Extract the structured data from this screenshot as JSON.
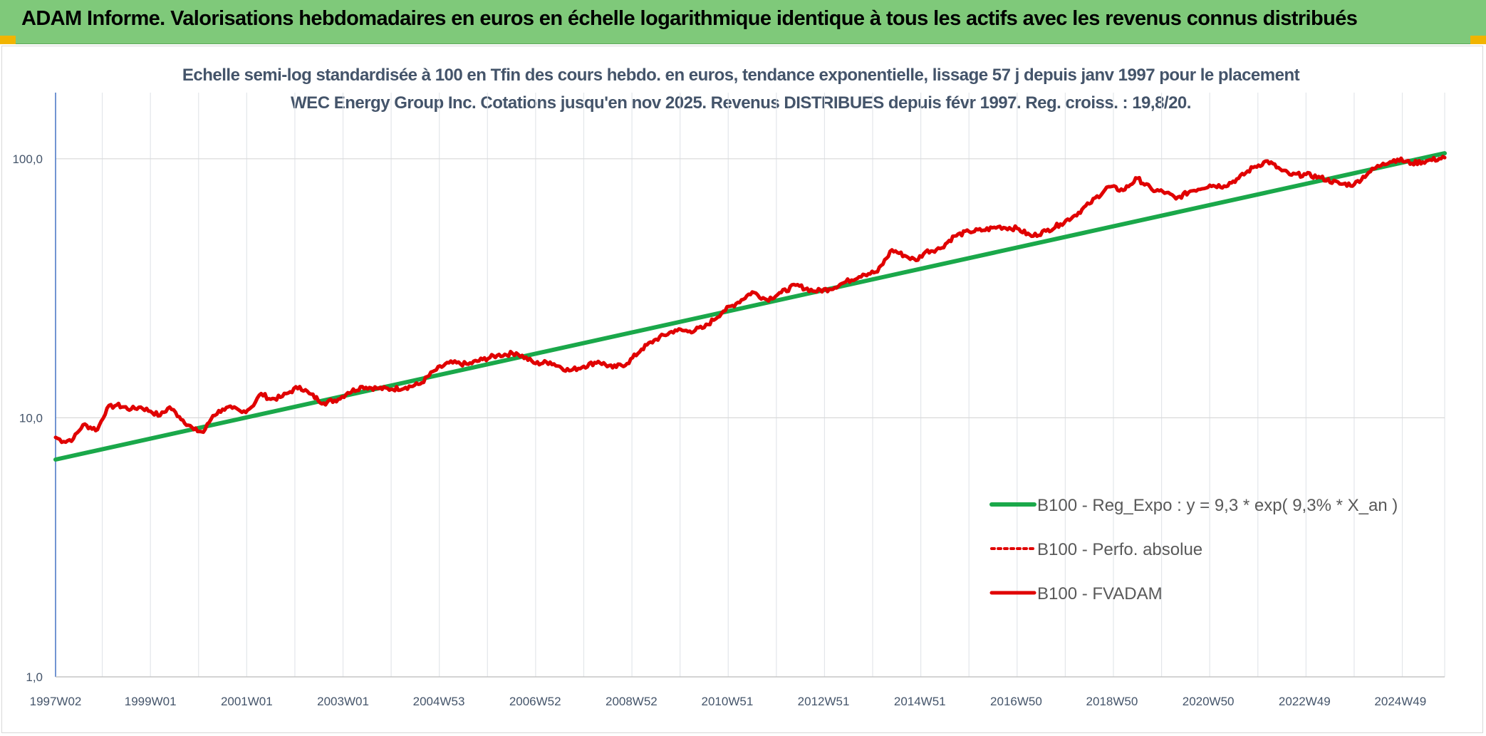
{
  "banner": {
    "title": "ADAM Informe. Valorisations hebdomadaires en euros en échelle logarithmique identique à tous les actifs avec les revenus connus distribués"
  },
  "colors": {
    "banner_bg": "#7fc97a",
    "corner_accent": "#f1b400",
    "regression": "#1aa84a",
    "performance": "#e00000",
    "text": "#44546a"
  },
  "chart_data": {
    "type": "line",
    "title": "Echelle semi-log standardisée à 100 en Tfin des cours hebdo. en euros, tendance exponentielle, lissage 57 j depuis janv 1997 pour le placement WEC Energy Group Inc. Cotations jusqu'en nov 2025. Revenus DISTRIBUES depuis févr 1997. Reg. croiss. : 19,8/20.",
    "yscale": "log",
    "ylim": [
      1,
      180
    ],
    "xlim": [
      1997.03,
      2025.88
    ],
    "y_ticks": [
      1,
      10,
      100
    ],
    "y_tick_labels": [
      "1,0",
      "10,0",
      "100,0"
    ],
    "x_ticks": [
      1997.03,
      1999.0,
      2001.0,
      2003.0,
      2004.99,
      2006.99,
      2008.99,
      2010.98,
      2012.98,
      2014.98,
      2016.98,
      2018.97,
      2020.97,
      2022.97,
      2024.96
    ],
    "x_tick_labels": [
      "1997W02",
      "1999W01",
      "2001W01",
      "2003W01",
      "2004W53",
      "2006W52",
      "2008W52",
      "2010W51",
      "2012W51",
      "2014W51",
      "2016W50",
      "2018W50",
      "2020W50",
      "2022W49",
      "2024W49"
    ],
    "x_minor_step": 1,
    "grid": true,
    "legend_position": "right",
    "series": [
      {
        "name": "B100 - Reg_Expo : y = 9,3 * exp( 9,3% *  X_an )",
        "style": "solid-green",
        "x": [
          1997.03,
          2025.88
        ],
        "y": [
          6.9,
          105
        ]
      },
      {
        "name": "B100 - Perfo. absolue",
        "style": "dotted-red",
        "x": [],
        "y": []
      },
      {
        "name": "B100 - FVADAM",
        "style": "solid-red",
        "x": [
          1997.03,
          1997.2,
          1997.4,
          1997.6,
          1997.9,
          1998.1,
          1998.3,
          1998.6,
          1998.8,
          1999.0,
          1999.2,
          1999.4,
          1999.6,
          1999.9,
          2000.1,
          2000.3,
          2000.5,
          2000.7,
          2000.9,
          2001.1,
          2001.3,
          2001.5,
          2001.7,
          2001.9,
          2002.1,
          2002.3,
          2002.6,
          2002.9,
          2003.1,
          2003.4,
          2003.7,
          2004.0,
          2004.3,
          2004.6,
          2004.9,
          2005.2,
          2005.6,
          2005.9,
          2006.2,
          2006.6,
          2007.0,
          2007.3,
          2007.7,
          2008.0,
          2008.3,
          2008.6,
          2008.9,
          2009.2,
          2009.5,
          2009.9,
          2010.2,
          2010.5,
          2010.9,
          2011.2,
          2011.5,
          2011.8,
          2012.1,
          2012.4,
          2012.8,
          2013.1,
          2013.4,
          2013.8,
          2014.1,
          2014.4,
          2014.7,
          2014.9,
          2015.1,
          2015.4,
          2015.7,
          2016.0,
          2016.3,
          2016.6,
          2017.0,
          2017.3,
          2017.6,
          2017.9,
          2018.2,
          2018.5,
          2018.9,
          2019.2,
          2019.5,
          2019.8,
          2020.1,
          2020.3,
          2020.6,
          2021.0,
          2021.3,
          2021.6,
          2021.9,
          2022.2,
          2022.5,
          2022.7,
          2023.0,
          2023.3,
          2023.7,
          2024.0,
          2024.3,
          2024.6,
          2024.9,
          2025.2,
          2025.5,
          2025.88
        ],
        "y": [
          8.4,
          8.1,
          8.3,
          9.4,
          9.0,
          10.9,
          11.2,
          10.8,
          11.0,
          10.6,
          10.2,
          11.0,
          10.1,
          9.0,
          8.8,
          10.2,
          10.8,
          10.9,
          10.5,
          11.0,
          12.4,
          11.8,
          12.0,
          12.6,
          13.2,
          12.4,
          11.4,
          11.8,
          12.5,
          13.2,
          13.0,
          12.9,
          13.1,
          13.5,
          15.2,
          16.3,
          16.1,
          16.8,
          17.4,
          17.8,
          16.2,
          16.4,
          15.2,
          15.8,
          16.5,
          15.6,
          16.2,
          18.4,
          20.1,
          21.8,
          21.6,
          22.3,
          25.8,
          27.9,
          30.6,
          28.6,
          30.4,
          32.5,
          30.8,
          31.4,
          33.2,
          35.8,
          36.6,
          44.5,
          42.0,
          40.5,
          43.8,
          45.0,
          50.3,
          52.4,
          53.0,
          54.6,
          53.8,
          50.2,
          52.6,
          56.0,
          60.5,
          67.0,
          78.0,
          75.5,
          84.0,
          76.0,
          74.0,
          70.0,
          75.0,
          79.0,
          78.5,
          84.0,
          92.5,
          98.0,
          90.0,
          86.5,
          87.0,
          84.5,
          80.0,
          79.5,
          88.5,
          96.0,
          99.5,
          96.0,
          98.0,
          101.0
        ]
      }
    ]
  }
}
